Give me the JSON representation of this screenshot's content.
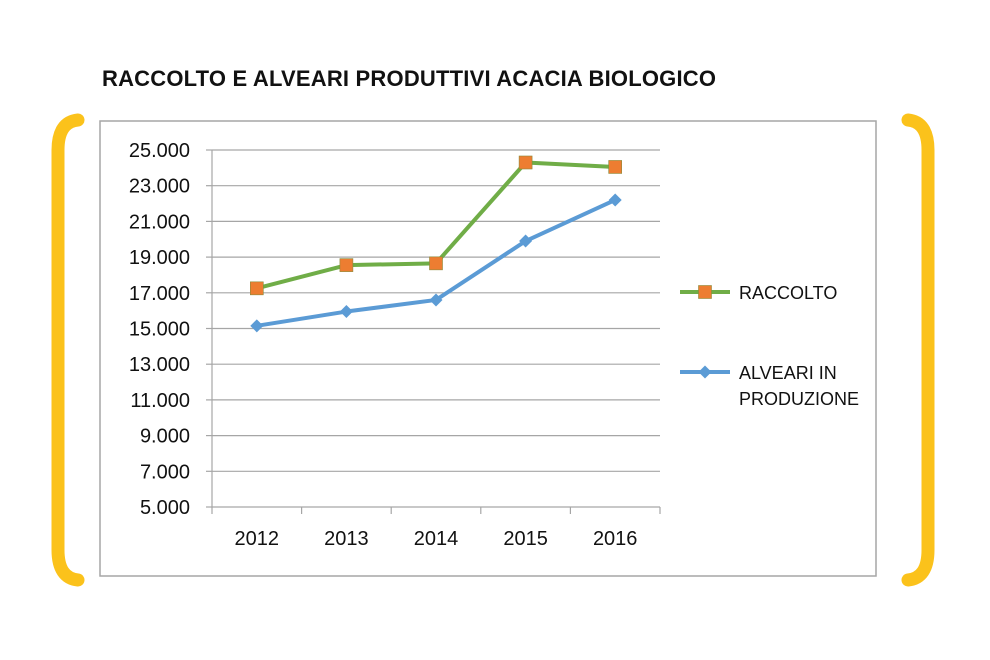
{
  "chart_data": {
    "type": "line",
    "title": "RACCOLTO E ALVEARI PRODUTTIVI ACACIA BIOLOGICO",
    "xlabel": "",
    "ylabel": "",
    "categories": [
      "2012",
      "2013",
      "2014",
      "2015",
      "2016"
    ],
    "ylim": [
      5000,
      25000
    ],
    "yticks": [
      5000,
      7000,
      9000,
      11000,
      13000,
      15000,
      17000,
      19000,
      21000,
      23000,
      25000
    ],
    "ytick_labels": [
      "5.000",
      "7.000",
      "9.000",
      "11.000",
      "13.000",
      "15.000",
      "17.000",
      "19.000",
      "21.000",
      "23.000",
      "25.000"
    ],
    "grid": true,
    "legend_position": "right",
    "series": [
      {
        "name": "RACCOLTO",
        "legend_lines": [
          "RACCOLTO"
        ],
        "values": [
          17250,
          18550,
          18650,
          24300,
          24050
        ],
        "color": "#70ad47",
        "marker": "square",
        "marker_color": "#ed7d31"
      },
      {
        "name": "ALVEARI IN PRODUZIONE",
        "legend_lines": [
          "ALVEARI IN",
          "PRODUZIONE"
        ],
        "values": [
          15150,
          15950,
          16600,
          19900,
          22200
        ],
        "color": "#5b9bd5",
        "marker": "diamond",
        "marker_color": "#5b9bd5"
      }
    ],
    "frame_color": "#fbc21b"
  }
}
